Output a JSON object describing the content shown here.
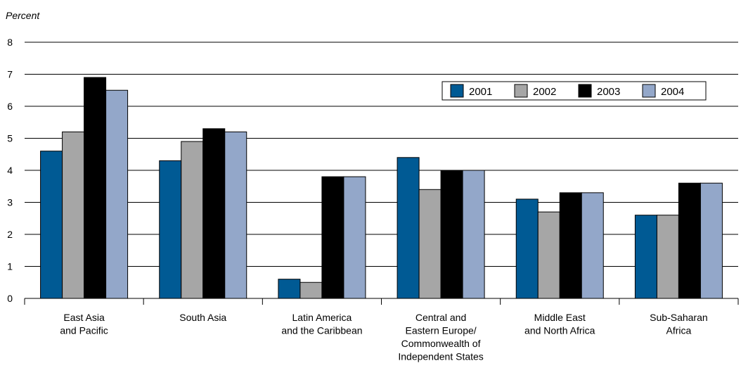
{
  "chart_data": {
    "type": "bar",
    "ylabel": "Percent",
    "xlabel": "",
    "ylim": [
      0,
      8
    ],
    "yticks": [
      0,
      1,
      2,
      3,
      4,
      5,
      6,
      7,
      8
    ],
    "grid": true,
    "legend_position": "top-right",
    "categories": [
      [
        "East Asia",
        "and Pacific"
      ],
      [
        "South Asia"
      ],
      [
        "Latin America",
        "and the Caribbean"
      ],
      [
        "Central  and",
        "Eastern Europe/",
        "Commonwealth of",
        "Independent States"
      ],
      [
        "Middle East",
        "and North Africa"
      ],
      [
        "Sub-Saharan",
        "Africa"
      ]
    ],
    "series": [
      {
        "name": "2001",
        "color": "#005a94",
        "values": [
          4.6,
          4.3,
          0.6,
          4.4,
          3.1,
          2.6
        ]
      },
      {
        "name": "2002",
        "color": "#a6a6a6",
        "values": [
          5.2,
          4.9,
          0.5,
          3.4,
          2.7,
          2.6
        ]
      },
      {
        "name": "2003",
        "color": "#000000",
        "values": [
          6.9,
          5.3,
          3.8,
          4.0,
          3.3,
          3.6
        ]
      },
      {
        "name": "2004",
        "color": "#93a7c9",
        "values": [
          6.5,
          5.2,
          3.8,
          4.0,
          3.3,
          3.6
        ]
      }
    ]
  }
}
